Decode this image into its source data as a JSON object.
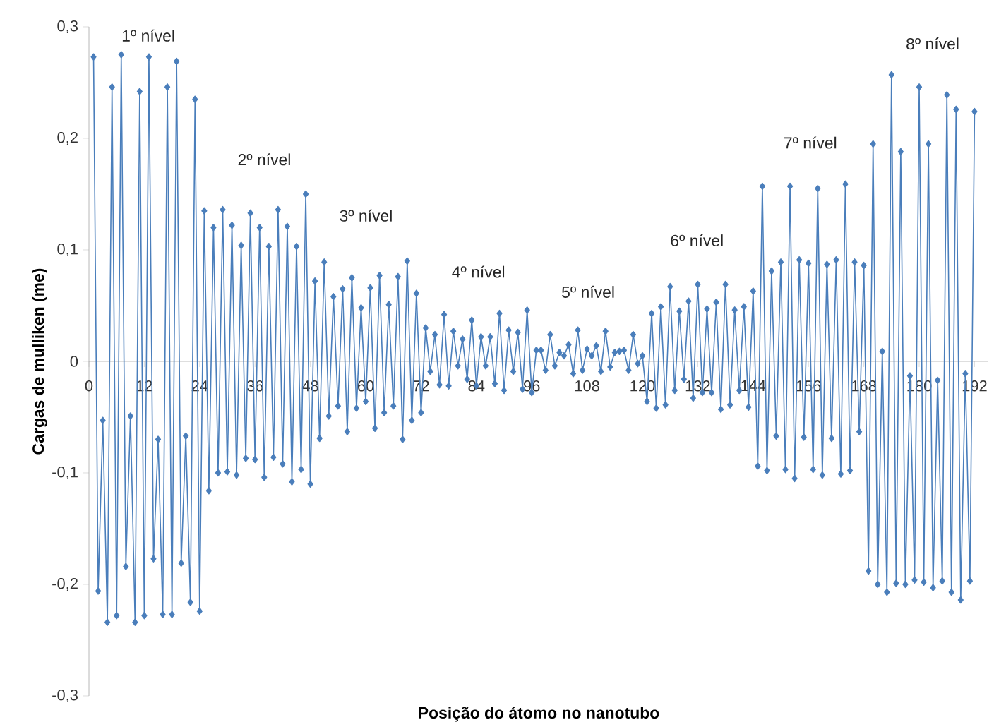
{
  "chart_data": {
    "type": "line",
    "xlabel": "Posição do átomo no nanotubo",
    "ylabel": "Cargas de mulliken (me)",
    "xlim": [
      0,
      195
    ],
    "ylim": [
      -0.3,
      0.3
    ],
    "xticks": [
      0,
      12,
      24,
      36,
      48,
      60,
      72,
      84,
      96,
      108,
      120,
      132,
      144,
      156,
      168,
      180,
      192
    ],
    "yticks": [
      {
        "value": -0.3,
        "label": "-0,3"
      },
      {
        "value": -0.2,
        "label": "-0,2"
      },
      {
        "value": -0.1,
        "label": "-0,1"
      },
      0,
      {
        "value": 0.1,
        "label": "0,1"
      },
      {
        "value": 0.2,
        "label": "0,2"
      },
      {
        "value": 0.3,
        "label": "0,3"
      }
    ],
    "marker": "diamond",
    "line_style": "solid",
    "annotations": [
      "1º nível",
      "2º nível",
      "3º nível",
      "4º nível",
      "5º nível",
      "6º nível",
      "7º nível",
      "8º nível"
    ],
    "series": [
      {
        "color": "#4a7ebb",
        "x": [
          1,
          2,
          3,
          4,
          5,
          6,
          7,
          8,
          9,
          10,
          11,
          12,
          13,
          14,
          15,
          16,
          17,
          18,
          19,
          20,
          21,
          22,
          23,
          24,
          25,
          26,
          27,
          28,
          29,
          30,
          31,
          32,
          33,
          34,
          35,
          36,
          37,
          38,
          39,
          40,
          41,
          42,
          43,
          44,
          45,
          46,
          47,
          48,
          49,
          50,
          51,
          52,
          53,
          54,
          55,
          56,
          57,
          58,
          59,
          60,
          61,
          62,
          63,
          64,
          65,
          66,
          67,
          68,
          69,
          70,
          71,
          72,
          73,
          74,
          75,
          76,
          77,
          78,
          79,
          80,
          81,
          82,
          83,
          84,
          85,
          86,
          87,
          88,
          89,
          90,
          91,
          92,
          93,
          94,
          95,
          96,
          97,
          98,
          99,
          100,
          101,
          102,
          103,
          104,
          105,
          106,
          107,
          108,
          109,
          110,
          111,
          112,
          113,
          114,
          115,
          116,
          117,
          118,
          119,
          120,
          121,
          122,
          123,
          124,
          125,
          126,
          127,
          128,
          129,
          130,
          131,
          132,
          133,
          134,
          135,
          136,
          137,
          138,
          139,
          140,
          141,
          142,
          143,
          144,
          145,
          146,
          147,
          148,
          149,
          150,
          151,
          152,
          153,
          154,
          155,
          156,
          157,
          158,
          159,
          160,
          161,
          162,
          163,
          164,
          165,
          166,
          167,
          168,
          169,
          170,
          171,
          172,
          173,
          174,
          175,
          176,
          177,
          178,
          179,
          180,
          181,
          182,
          183,
          184,
          185,
          186,
          187,
          188,
          189,
          190,
          191,
          192
        ],
        "values": [
          0.273,
          -0.206,
          -0.053,
          -0.234,
          0.246,
          -0.228,
          0.275,
          -0.184,
          -0.049,
          -0.234,
          0.242,
          -0.228,
          0.273,
          -0.177,
          -0.07,
          -0.227,
          0.246,
          -0.227,
          0.269,
          -0.181,
          -0.067,
          -0.216,
          0.235,
          -0.224,
          0.135,
          -0.116,
          0.12,
          -0.1,
          0.136,
          -0.099,
          0.122,
          -0.102,
          0.104,
          -0.087,
          0.133,
          -0.088,
          0.12,
          -0.104,
          0.103,
          -0.086,
          0.136,
          -0.092,
          0.121,
          -0.108,
          0.103,
          -0.097,
          0.15,
          -0.11,
          0.072,
          -0.069,
          0.089,
          -0.049,
          0.058,
          -0.04,
          0.065,
          -0.063,
          0.075,
          -0.042,
          0.048,
          -0.036,
          0.066,
          -0.06,
          0.077,
          -0.046,
          0.051,
          -0.04,
          0.076,
          -0.07,
          0.09,
          -0.053,
          0.061,
          -0.046,
          0.03,
          -0.009,
          0.024,
          -0.021,
          0.042,
          -0.022,
          0.027,
          -0.004,
          0.02,
          -0.016,
          0.037,
          -0.022,
          0.022,
          -0.004,
          0.022,
          -0.02,
          0.043,
          -0.026,
          0.028,
          -0.009,
          0.026,
          -0.025,
          0.046,
          -0.028,
          0.01,
          0.01,
          -0.008,
          0.024,
          -0.004,
          0.008,
          0.005,
          0.015,
          -0.011,
          0.028,
          -0.008,
          0.011,
          0.005,
          0.014,
          -0.009,
          0.027,
          -0.005,
          0.008,
          0.009,
          0.01,
          -0.008,
          0.024,
          -0.002,
          0.005,
          -0.036,
          0.043,
          -0.042,
          0.049,
          -0.039,
          0.067,
          -0.026,
          0.045,
          -0.016,
          0.054,
          -0.033,
          0.069,
          -0.028,
          0.047,
          -0.028,
          0.053,
          -0.043,
          0.069,
          -0.039,
          0.046,
          -0.026,
          0.049,
          -0.041,
          0.063,
          -0.094,
          0.157,
          -0.098,
          0.081,
          -0.067,
          0.089,
          -0.097,
          0.157,
          -0.105,
          0.091,
          -0.068,
          0.088,
          -0.097,
          0.155,
          -0.102,
          0.087,
          -0.069,
          0.091,
          -0.101,
          0.159,
          -0.098,
          0.089,
          -0.063,
          0.086,
          -0.188,
          0.195,
          -0.2,
          0.009,
          -0.207,
          0.257,
          -0.199,
          0.188,
          -0.2,
          -0.013,
          -0.196,
          0.246,
          -0.198,
          0.195,
          -0.203,
          -0.017,
          -0.197,
          0.239,
          -0.207,
          0.226,
          -0.214,
          -0.011,
          -0.197,
          0.224
        ]
      }
    ]
  }
}
